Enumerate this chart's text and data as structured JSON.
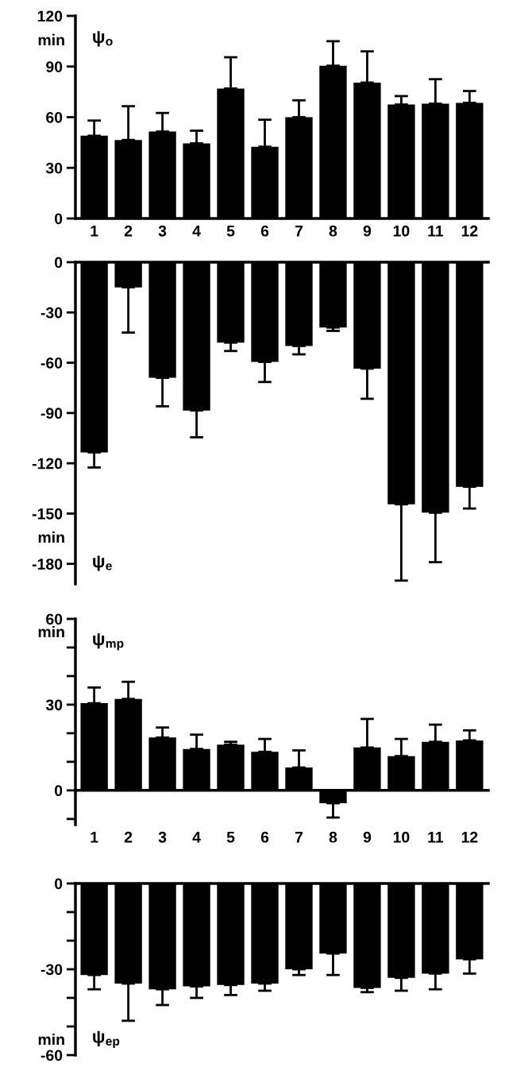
{
  "chart_data": [
    {
      "type": "bar",
      "title": "ψ$_{o}$",
      "ylabel": "min",
      "color": "#000000",
      "categories": [
        "1",
        "2",
        "3",
        "4",
        "5",
        "6",
        "7",
        "8",
        "9",
        "10",
        "11",
        "12"
      ],
      "values": [
        49,
        46.5,
        51.5,
        44.5,
        77,
        42.5,
        60,
        90.5,
        80.5,
        67.5,
        68,
        68.5
      ],
      "errors": [
        [
          49,
          58
        ],
        [
          46.5,
          66.5
        ],
        [
          51.5,
          62.5
        ],
        [
          44.5,
          52
        ],
        [
          77,
          95.5
        ],
        [
          42.5,
          58.5
        ],
        [
          60,
          70
        ],
        [
          90.5,
          105
        ],
        [
          80.5,
          99
        ],
        [
          67.5,
          72.5
        ],
        [
          68,
          82.5
        ],
        [
          68.5,
          75.5
        ]
      ],
      "ylim": [
        0,
        120
      ],
      "yticks": [
        0,
        30,
        60,
        90,
        120
      ]
    },
    {
      "type": "bar",
      "title": "ψ$_{e}$",
      "ylabel": "min",
      "color": "#000000",
      "categories": [
        "1",
        "2",
        "3",
        "4",
        "5",
        "6",
        "7",
        "8",
        "9",
        "10",
        "11",
        "12"
      ],
      "values": [
        -113.5,
        -15,
        -69,
        -88.5,
        -48,
        -59.5,
        -50,
        -39,
        -63.5,
        -144.5,
        -149.5,
        -134
      ],
      "errors": [
        [
          -122.5,
          -113.5
        ],
        [
          -42,
          -15
        ],
        [
          -86,
          -69
        ],
        [
          -104.5,
          -88.5
        ],
        [
          -53,
          -48
        ],
        [
          -71.5,
          -59.5
        ],
        [
          -55,
          -50
        ],
        [
          -41,
          -39
        ],
        [
          -81.5,
          -63.5
        ],
        [
          -190,
          -144.5
        ],
        [
          -179,
          -149.5
        ],
        [
          -147,
          -134
        ]
      ],
      "ylim": [
        -192,
        0
      ],
      "yticks": [
        0,
        -30,
        -60,
        -90,
        -120,
        -150,
        -180
      ],
      "tick_labels": "y"
    },
    {
      "type": "bar",
      "title": "ψ$_{mp}$",
      "ylabel": "min",
      "color": "#000000",
      "categories": [
        "1",
        "2",
        "3",
        "4",
        "5",
        "6",
        "7",
        "8",
        "9",
        "10",
        "11",
        "12"
      ],
      "values": [
        30.5,
        32,
        18.5,
        14.5,
        16,
        13.5,
        8,
        -4.5,
        15,
        12,
        17,
        17.5
      ],
      "errors": [
        [
          30.5,
          36
        ],
        [
          32,
          38
        ],
        [
          18.5,
          22
        ],
        [
          14.5,
          19.5
        ],
        [
          16,
          17
        ],
        [
          13.5,
          18
        ],
        [
          8,
          14
        ],
        [
          -9.5,
          -4.5
        ],
        [
          15,
          25
        ],
        [
          12,
          18
        ],
        [
          17,
          23
        ],
        [
          17.5,
          21
        ]
      ],
      "ylim": [
        -12,
        60
      ],
      "yticks": [
        60,
        {
          "value": 50,
          "label": null
        },
        {
          "value": 40,
          "label": null
        },
        30,
        {
          "value": 20,
          "label": null
        },
        {
          "value": 10,
          "label": null
        },
        0,
        {
          "value": -10,
          "label": null
        }
      ]
    },
    {
      "type": "bar",
      "title": "ψ$_{ep}$",
      "ylabel": "min",
      "color": "#000000",
      "categories": [
        "1",
        "2",
        "3",
        "4",
        "5",
        "6",
        "7",
        "8",
        "9",
        "10",
        "11",
        "12"
      ],
      "values": [
        -32,
        -35,
        -37,
        -36,
        -35.5,
        -35,
        -30,
        -24.5,
        -36.5,
        -33,
        -31.5,
        -26.5
      ],
      "errors": [
        [
          -37,
          -32
        ],
        [
          -48,
          -35
        ],
        [
          -42.5,
          -37
        ],
        [
          -40,
          -36
        ],
        [
          -39,
          -35.5
        ],
        [
          -37.5,
          -35
        ],
        [
          -32,
          -30
        ],
        [
          -32,
          -24.5
        ],
        [
          -38,
          -36.5
        ],
        [
          -37.5,
          -33
        ],
        [
          -37,
          -31.5
        ],
        [
          -31.5,
          -26.5
        ]
      ],
      "ylim": [
        -60,
        0
      ],
      "yticks": [
        0,
        {
          "value": -10,
          "label": null
        },
        {
          "value": -20,
          "label": null
        },
        -30,
        {
          "value": -40,
          "label": null
        },
        {
          "value": -50,
          "label": null
        },
        -60
      ],
      "tick_labels": "y"
    }
  ]
}
